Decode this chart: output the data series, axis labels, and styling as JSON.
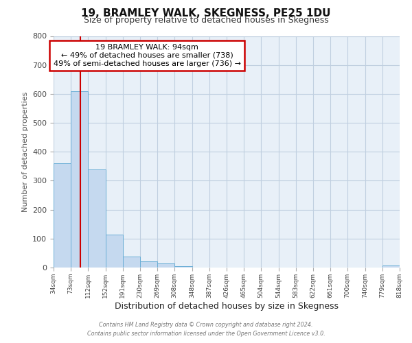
{
  "title": "19, BRAMLEY WALK, SKEGNESS, PE25 1DU",
  "subtitle": "Size of property relative to detached houses in Skegness",
  "xlabel": "Distribution of detached houses by size in Skegness",
  "ylabel": "Number of detached properties",
  "bar_edges": [
    34,
    73,
    112,
    152,
    191,
    230,
    269,
    308,
    348,
    387,
    426,
    465,
    504,
    544,
    583,
    622,
    661,
    700,
    740,
    779,
    818
  ],
  "bar_heights": [
    360,
    610,
    340,
    113,
    38,
    22,
    15,
    5,
    0,
    0,
    0,
    0,
    0,
    0,
    0,
    0,
    0,
    0,
    0,
    8
  ],
  "bar_color": "#c5d9ef",
  "bar_edge_color": "#6baed6",
  "red_line_x": 94,
  "annotation_title": "19 BRAMLEY WALK: 94sqm",
  "annotation_line1": "← 49% of detached houses are smaller (738)",
  "annotation_line2": "49% of semi-detached houses are larger (736) →",
  "annotation_box_color": "#ffffff",
  "annotation_box_edgecolor": "#cc0000",
  "red_line_color": "#cc0000",
  "ylim": [
    0,
    800
  ],
  "yticks": [
    0,
    100,
    200,
    300,
    400,
    500,
    600,
    700,
    800
  ],
  "tick_labels": [
    "34sqm",
    "73sqm",
    "112sqm",
    "152sqm",
    "191sqm",
    "230sqm",
    "269sqm",
    "308sqm",
    "348sqm",
    "387sqm",
    "426sqm",
    "465sqm",
    "504sqm",
    "544sqm",
    "583sqm",
    "622sqm",
    "661sqm",
    "700sqm",
    "740sqm",
    "779sqm",
    "818sqm"
  ],
  "footer1": "Contains HM Land Registry data © Crown copyright and database right 2024.",
  "footer2": "Contains public sector information licensed under the Open Government Licence v3.0.",
  "background_color": "#ffffff",
  "ax_facecolor": "#e8f0f8",
  "grid_color": "#c0cfe0"
}
